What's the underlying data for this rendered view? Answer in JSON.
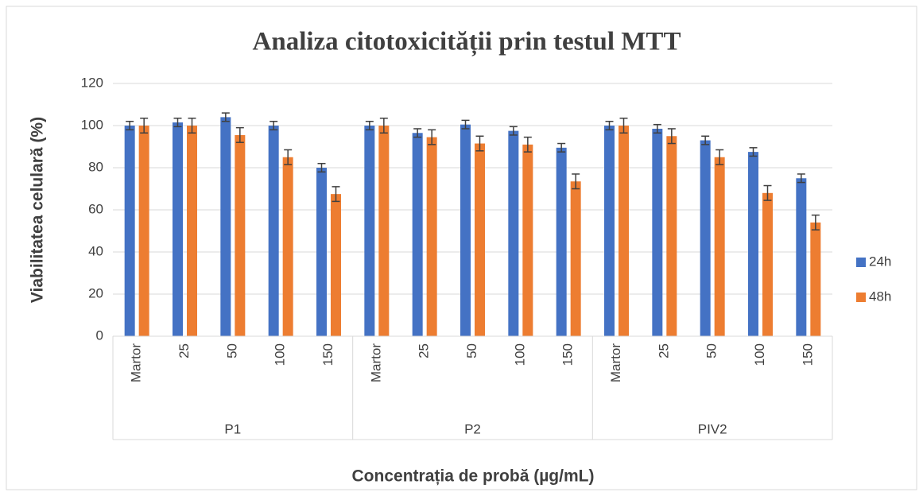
{
  "chart_data": {
    "type": "bar",
    "title": "Analiza citotoxicității prin testul MTT",
    "x_label": "Concentrația de probă (µg/mL)",
    "y_label": "Viabilitatea celulară (%)",
    "groups": [
      "P1",
      "P2",
      "PIV2"
    ],
    "categories": [
      "Martor",
      "25",
      "50",
      "100",
      "150",
      "Martor",
      "25",
      "50",
      "100",
      "150",
      "Martor",
      "25",
      "50",
      "100",
      "150"
    ],
    "series": [
      {
        "name": "24h",
        "color": "#4472c4",
        "values": [
          100,
          101.5,
          104,
          100,
          80,
          100,
          96.5,
          100.5,
          97.5,
          89.5,
          100,
          98.5,
          93,
          87.5,
          75
        ],
        "errors": [
          2,
          2,
          2,
          2,
          2,
          2,
          2,
          2,
          2,
          2,
          2,
          2,
          2,
          2,
          2
        ]
      },
      {
        "name": "48h",
        "color": "#ed7d31",
        "values": [
          100,
          100,
          95.5,
          85,
          67.5,
          100,
          94.5,
          91.5,
          91,
          73.5,
          100,
          95,
          85,
          68,
          54
        ],
        "errors": [
          3.5,
          3.5,
          3.5,
          3.5,
          3.5,
          3.5,
          3.5,
          3.5,
          3.5,
          3.5,
          3.5,
          3.5,
          3.5,
          3.5,
          3.5
        ]
      }
    ],
    "ylim": [
      0,
      120
    ],
    "yticks": [
      0,
      20,
      40,
      60,
      80,
      100,
      120
    ],
    "grid": true,
    "legend": "right"
  }
}
